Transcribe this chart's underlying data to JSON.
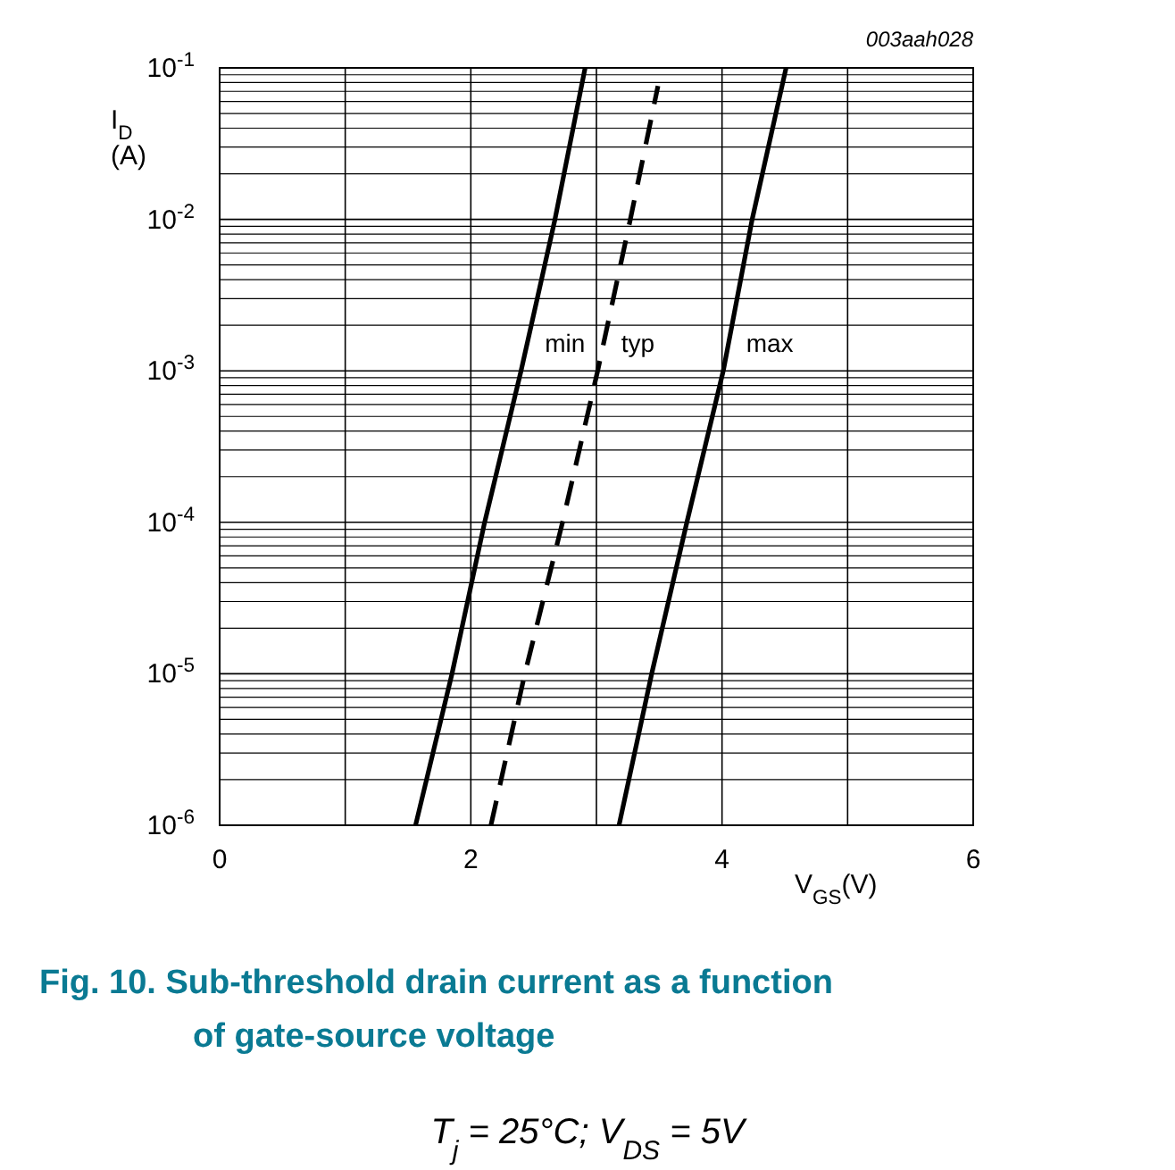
{
  "chart_data": {
    "type": "line",
    "title": "Fig. 10.  Sub-threshold drain current as a function of gate-source voltage",
    "subtitle": "T$_{j}$ = 25°C;  V$_{DS}$ = 5V",
    "xlabel": "V$_{GS}$(V)",
    "ylabel": "I$_{D}$ (A)",
    "annotations": [
      "003aah028"
    ],
    "log": "y",
    "grid": true,
    "marker": "none",
    "xlim": [
      0,
      6
    ],
    "xticks": [
      0,
      {
        "value": 1,
        "label": null
      },
      2,
      {
        "value": 3,
        "label": null
      },
      4,
      {
        "value": 5,
        "label": null
      },
      6
    ],
    "ylim": [
      1e-06,
      0.1
    ],
    "yticks": [
      {
        "value": 1e-06,
        "label": "10$^{-6}$"
      },
      {
        "value": 1e-05,
        "label": "10$^{-5}$"
      },
      {
        "value": 0.0001,
        "label": "10$^{-4}$"
      },
      {
        "value": 0.001,
        "label": "10$^{-3}$"
      },
      {
        "value": 0.01,
        "label": "10$^{-2}$"
      },
      {
        "value": 0.1,
        "label": "10$^{-1}$"
      }
    ],
    "series": [
      {
        "name": "min",
        "color": "#000000",
        "line_style": "solid",
        "x": [
          1.56,
          1.85,
          2.11,
          2.4,
          2.67,
          2.91
        ],
        "values": [
          1e-06,
          1e-05,
          0.0001,
          0.001,
          0.01,
          0.1
        ]
      },
      {
        "name": "typ",
        "color": "#000000",
        "line_style": "dashed",
        "x": [
          2.16,
          2.43,
          2.73,
          3.01,
          3.27,
          3.49
        ],
        "values": [
          1e-06,
          1e-05,
          0.0001,
          0.001,
          0.01,
          0.076
        ]
      },
      {
        "name": "max",
        "color": "#000000",
        "line_style": "solid",
        "x": [
          3.18,
          3.44,
          3.72,
          4.01,
          4.24,
          4.51
        ],
        "values": [
          1e-06,
          1e-05,
          0.0001,
          0.001,
          0.01,
          0.1
        ]
      }
    ]
  }
}
